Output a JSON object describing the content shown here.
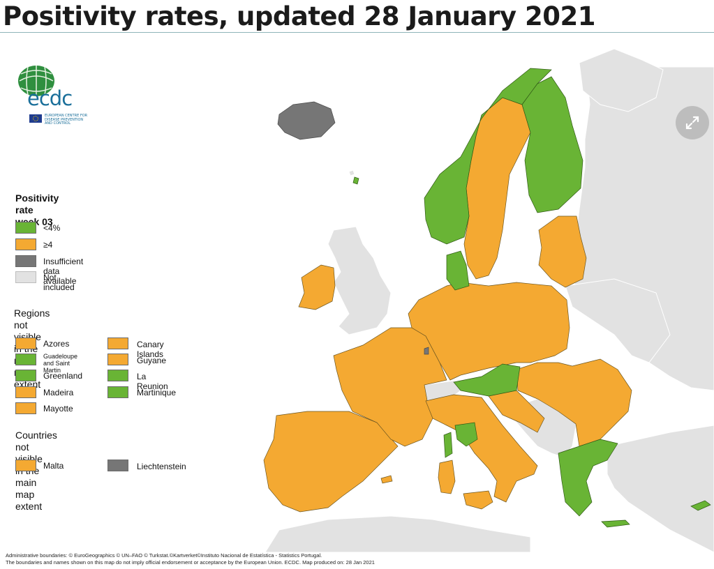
{
  "page": {
    "title": "Positivity rates, updated 28 January 2021"
  },
  "colors": {
    "green": "#69b435",
    "orange": "#f4a932",
    "grey": "#767676",
    "not_included": "#e2e2e2",
    "water": "#ffffff",
    "border": "#5a4a2a"
  },
  "logo": {
    "text": "ecdc",
    "subtitle_line1": "EUROPEAN CENTRE FOR",
    "subtitle_line2": "DISEASE PREVENTION",
    "subtitle_line3": "AND CONTROL"
  },
  "legend": {
    "title_line1": "Positivity rate",
    "title_line2": "week 03",
    "items": [
      {
        "label": "<4%",
        "color": "#69b435"
      },
      {
        "label": "≥4",
        "color": "#f4a932"
      },
      {
        "label": "Insufficient data available",
        "color": "#767676"
      },
      {
        "label": "Not included",
        "color": "#e2e2e2"
      }
    ],
    "regions_title_line1": "Regions not visible",
    "regions_title_line2": "in the main map extent",
    "regions": [
      {
        "label": "Azores",
        "color": "#f4a932"
      },
      {
        "label": "Guadeloupe and Saint Martin",
        "label_line1": "Guadeloupe",
        "label_line2": "and Saint Martin",
        "color": "#69b435"
      },
      {
        "label": "Greenland",
        "color": "#69b435"
      },
      {
        "label": "Madeira",
        "color": "#f4a932"
      },
      {
        "label": "Mayotte",
        "color": "#f4a932"
      },
      {
        "label": "Canary Islands",
        "color": "#f4a932"
      },
      {
        "label": "Guyane",
        "color": "#f4a932"
      },
      {
        "label": "La Reunion",
        "color": "#69b435"
      },
      {
        "label": "Martinique",
        "color": "#69b435"
      }
    ],
    "countries_title_line1": "Countries not visible",
    "countries_title_line2": "in the main map extent",
    "countries": [
      {
        "label": "Malta",
        "color": "#f4a932"
      },
      {
        "label": "Liechtenstein",
        "color": "#767676"
      }
    ]
  },
  "footer": {
    "line1": "Administrative boundaries: © EuroGeographics © UN–FAO © Turkstat.©Kartverket©Instituto Nacional de Estatística - Statistics Portugal.",
    "line2": "The boundaries and names shown on this map do not imply official endorsement or acceptance by the European Union. ECDC. Map produced on: 28 Jan 2021"
  },
  "controls": {
    "fullscreen_icon": "expand-arrows-icon"
  }
}
